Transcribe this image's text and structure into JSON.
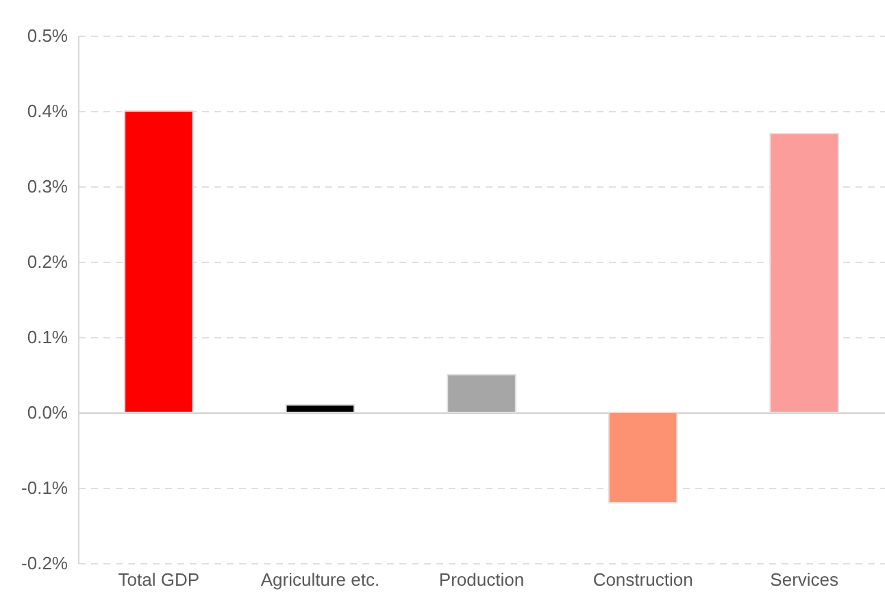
{
  "chart_data": {
    "type": "bar",
    "categories": [
      "Total GDP",
      "Agriculture etc.",
      "Production",
      "Construction",
      "Services"
    ],
    "values": [
      0.4,
      0.01,
      0.05,
      -0.12,
      0.37
    ],
    "colors": [
      "#ff0000",
      "#000000",
      "#a6a6a6",
      "#fc9272",
      "#fb9d9a"
    ],
    "ylim": [
      -0.2,
      0.5
    ],
    "yticks": [
      {
        "value": -0.2,
        "label": "-0.2%"
      },
      {
        "value": -0.1,
        "label": "-0.1%"
      },
      {
        "value": 0,
        "label": "0.0%"
      },
      {
        "value": 0.1,
        "label": "0.1%"
      },
      {
        "value": 0.2,
        "label": "0.2%"
      },
      {
        "value": 0.3,
        "label": "0.3%"
      },
      {
        "value": 0.4,
        "label": "0.4%"
      },
      {
        "value": 0.5,
        "label": "0.5%"
      }
    ],
    "grid": "y"
  }
}
